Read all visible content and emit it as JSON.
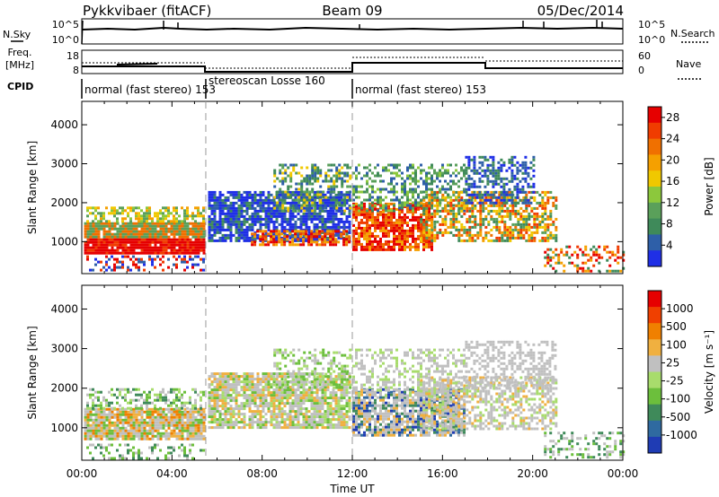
{
  "header": {
    "station": "Pykkvibaer (fitACF)",
    "beam": "Beam 09",
    "date": "05/Dec/2014"
  },
  "strips": {
    "nsky_label": "N.Sky",
    "nsky_ticks": [
      "10^5",
      "10^0"
    ],
    "nsearch_label": "N.Search",
    "nsearch_ticks": [
      "10^5",
      "10^0"
    ],
    "freq_label_1": "Freq.",
    "freq_label_2": "[MHz]",
    "freq_ticks": [
      "18",
      "8"
    ],
    "nave_label": "Nave",
    "nave_ticks": [
      "60",
      "0"
    ],
    "cpid_label": "CPID",
    "cpid_segments": [
      {
        "label": "normal (fast stereo) 153",
        "start_hr": 0,
        "end_hr": 5.5
      },
      {
        "label": "stereoscan Losse 160",
        "start_hr": 5.5,
        "end_hr": 12
      },
      {
        "label": "normal (fast stereo) 153",
        "start_hr": 12,
        "end_hr": 24
      }
    ]
  },
  "chart_data": [
    {
      "type": "heatmap",
      "ylabel": "Slant Range [km]",
      "yticks": [
        "1000",
        "2000",
        "3000",
        "4000"
      ],
      "ylim": [
        180,
        4600
      ],
      "xlim": [
        0,
        24
      ],
      "colorbar_label": "Power [dB]",
      "colorbar_ticks": [
        "4",
        "8",
        "12",
        "16",
        "20",
        "24",
        "28"
      ],
      "colorbar_range": [
        0,
        30
      ],
      "colors": [
        "#1f2fe6",
        "#2e5fa8",
        "#3f8a5a",
        "#5aa05a",
        "#8cc83c",
        "#f0c800",
        "#f5a000",
        "#f07000",
        "#f03c00",
        "#e60000"
      ],
      "mode_change_hours": [
        5.5,
        12
      ]
    },
    {
      "type": "heatmap",
      "ylabel": "Slant Range [km]",
      "yticks": [
        "1000",
        "2000",
        "3000",
        "4000"
      ],
      "ylim": [
        180,
        4600
      ],
      "xlim": [
        0,
        24
      ],
      "colorbar_label": "Velocity [m s⁻¹]",
      "colorbar_ticks": [
        "1000",
        "500",
        "100",
        "25",
        "-25",
        "-100",
        "-500",
        "-1000"
      ],
      "colorbar_range": [
        -1000,
        1000
      ],
      "colors": [
        "#1f3cb4",
        "#2f6aa0",
        "#3f8a5a",
        "#6cbf3c",
        "#a8dc6c",
        "#c0c0c0",
        "#f0b040",
        "#f08000",
        "#f04000",
        "#e60000"
      ],
      "mode_change_hours": [
        5.5,
        12
      ]
    }
  ],
  "xaxis": {
    "ticks": [
      "00:00",
      "04:00",
      "08:00",
      "12:00",
      "16:00",
      "20:00",
      "00:00"
    ],
    "label": "Time UT"
  }
}
